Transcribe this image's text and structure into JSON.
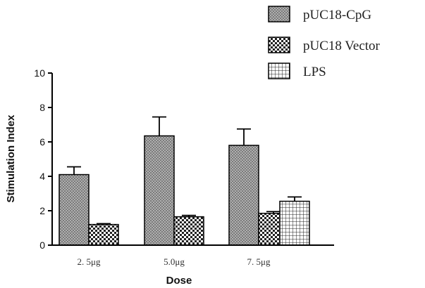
{
  "chart_data": {
    "type": "bar",
    "title": "",
    "xlabel": "Dose",
    "ylabel": "Stimulation Index",
    "ylim": [
      0,
      10
    ],
    "yticks": [
      0,
      2,
      4,
      6,
      8,
      10
    ],
    "grid": false,
    "legend_position": "top-right",
    "categories": [
      "2. 5μg",
      "5.0μg",
      "7. 5μg",
      ""
    ],
    "series": [
      {
        "name": "pUC18-CpG",
        "pattern": "dense-crosshatch",
        "values": [
          4.1,
          6.35,
          5.8,
          null
        ],
        "errors": [
          0.45,
          1.1,
          0.95,
          null
        ]
      },
      {
        "name": "pUC18 Vector",
        "pattern": "checker",
        "values": [
          1.2,
          1.65,
          1.85,
          null
        ],
        "errors": [
          0.05,
          0.08,
          0.1,
          null
        ]
      },
      {
        "name": "LPS",
        "pattern": "grid",
        "values": [
          null,
          null,
          null,
          2.55
        ],
        "errors": [
          null,
          null,
          null,
          0.25
        ]
      }
    ]
  }
}
